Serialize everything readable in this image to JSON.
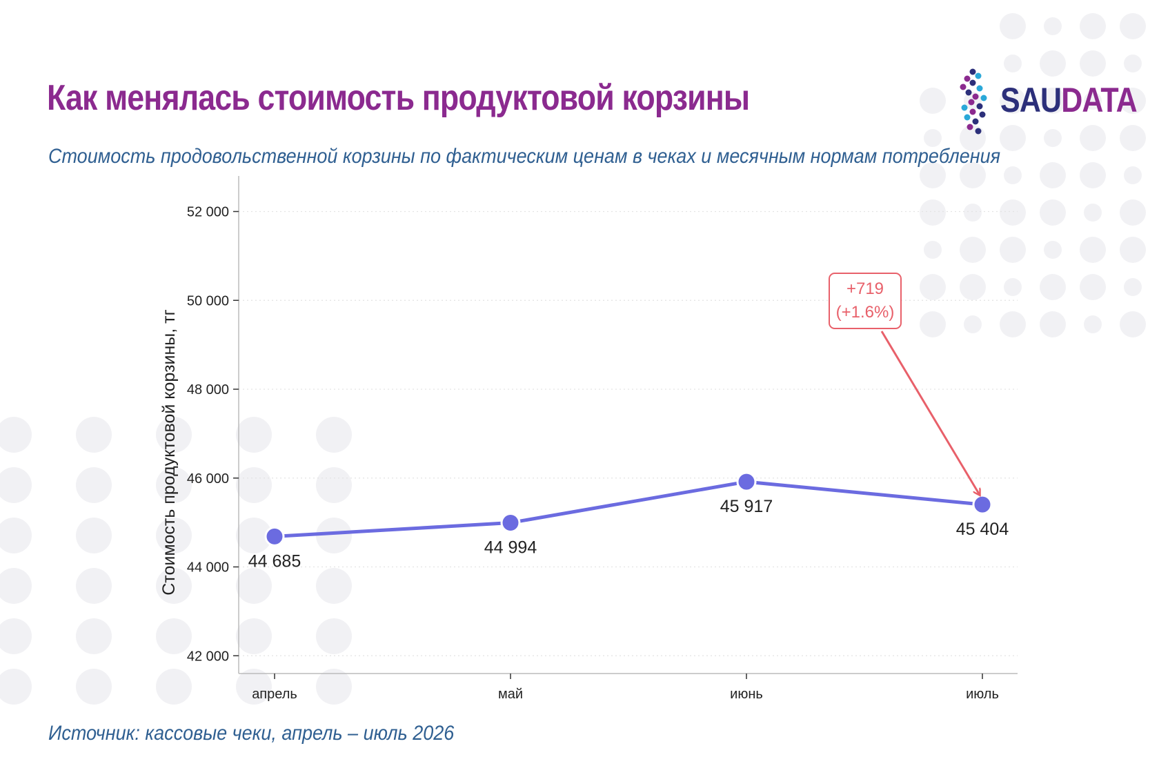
{
  "header": {
    "title": "Как менялась стоимость продуктовой корзины",
    "subtitle": "Стоимость продовольственной корзины по фактическим ценам в чеках и месячным нормам потребления"
  },
  "footer": {
    "source": "Источник: кассовые чеки, апрель – июль 2026"
  },
  "logo": {
    "part1": "SAU",
    "part2": "DATA",
    "colors": {
      "dark": "#2c2f7a",
      "purple": "#8b2a8f",
      "cyan": "#2aa8d8"
    }
  },
  "colors": {
    "title": "#8b2a8f",
    "text_blue": "#2f5f91",
    "series": "#6b6be0",
    "annotation": "#e8606a",
    "decor_dots": "#f1f1f4"
  },
  "chart_data": {
    "type": "line",
    "title": "",
    "xlabel": "",
    "ylabel": "Стоимость продуктовой корзины, тг",
    "categories": [
      "апрель",
      "май",
      "июнь",
      "июль"
    ],
    "series": [
      {
        "values": [
          44685,
          44994,
          45917,
          45404
        ]
      }
    ],
    "data_labels": [
      "44 685",
      "44 994",
      "45 917",
      "45 404"
    ],
    "ylim": [
      41600,
      52800
    ],
    "yticks": [
      42000,
      44000,
      46000,
      48000,
      50000,
      52000
    ],
    "ytick_labels": [
      "42 000",
      "44 000",
      "46 000",
      "48 000",
      "50 000",
      "52 000"
    ],
    "grid": "horizontal-dotted",
    "annotation": {
      "line1": "+719",
      "line2": "(+1.6%)",
      "target_category": "июль"
    }
  }
}
